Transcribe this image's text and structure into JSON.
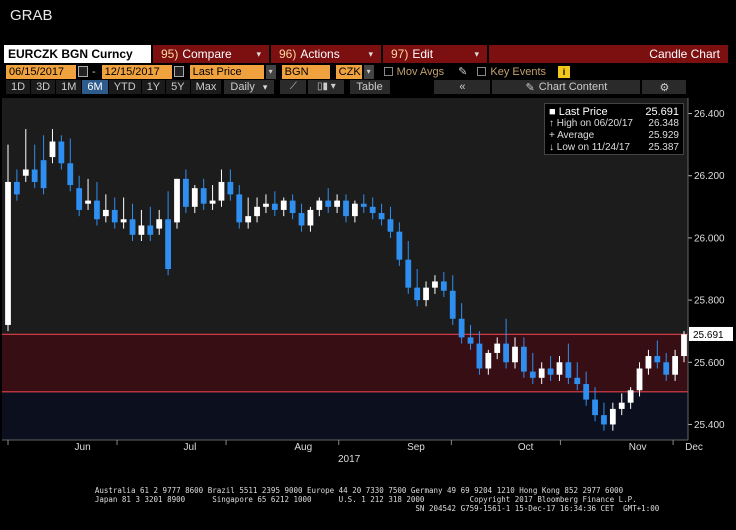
{
  "app": {
    "title": "GRAB"
  },
  "toolbar": {
    "ticker": "EURCZK BGN Curncy",
    "compare": {
      "num": "95)",
      "label": "Compare"
    },
    "actions": {
      "num": "96)",
      "label": "Actions"
    },
    "edit": {
      "num": "97)",
      "label": "Edit"
    },
    "chart_type": "Candle Chart"
  },
  "params": {
    "start_date": "06/15/2017",
    "end_date": "12/15/2017",
    "field": "Last Price",
    "source": "BGN",
    "currency": "CZK",
    "mov_avgs": "Mov Avgs",
    "key_events": "Key Events",
    "info": "i"
  },
  "periods": {
    "buttons": [
      "1D",
      "3D",
      "1M",
      "6M",
      "YTD",
      "1Y",
      "5Y",
      "Max"
    ],
    "active": "6M",
    "frequency": "Daily",
    "table": "Table",
    "collapse": "«",
    "content": "Chart Content",
    "settings_icon": "gear-icon"
  },
  "legend": {
    "rows": [
      {
        "label": "Last Price",
        "value": "25.691"
      },
      {
        "label": "High on 06/20/17",
        "value": "26.348"
      },
      {
        "label": "Average",
        "value": "25.929"
      },
      {
        "label": "Low on 11/24/17",
        "value": "25.387"
      }
    ]
  },
  "colors": {
    "up": "#ffffff",
    "down": "#2f8ff0",
    "band": "#e0404a",
    "panel": "#1c1c1c"
  },
  "chart_data": {
    "type": "candlestick",
    "ylim": [
      25.35,
      26.45
    ],
    "y_ticks": [
      "26.400",
      "26.200",
      "26.000",
      "25.800",
      "25.600",
      "25.400"
    ],
    "month_labels": [
      "Jun",
      "Jul",
      "Aug",
      "Sep",
      "Oct",
      "Nov",
      "Dec"
    ],
    "year_label": "2017",
    "last_price_tag": "25.691",
    "band": {
      "upper": 25.69,
      "lower": 25.505
    },
    "x_start_day": 0,
    "x_end_day": 186,
    "month_day_offsets": [
      0,
      30,
      60,
      91,
      122,
      152,
      183
    ],
    "candles": [
      [
        25.72,
        26.3,
        26.18
      ],
      [
        26.18,
        26.22,
        26.14
      ],
      [
        26.2,
        26.35,
        26.22
      ],
      [
        26.22,
        26.3,
        26.18
      ],
      [
        26.25,
        26.33,
        26.16
      ],
      [
        26.26,
        26.35,
        26.31
      ],
      [
        26.31,
        26.33,
        26.24
      ],
      [
        26.24,
        26.32,
        26.17
      ],
      [
        26.16,
        26.2,
        26.09
      ],
      [
        26.11,
        26.19,
        26.12
      ],
      [
        26.12,
        26.18,
        26.06
      ],
      [
        26.07,
        26.14,
        26.09
      ],
      [
        26.09,
        26.13,
        26.05
      ],
      [
        26.05,
        26.13,
        26.06
      ],
      [
        26.06,
        26.11,
        26.01
      ],
      [
        26.01,
        26.09,
        26.04
      ],
      [
        26.04,
        26.1,
        26.01
      ],
      [
        26.03,
        26.09,
        26.06
      ],
      [
        26.06,
        26.15,
        25.9
      ],
      [
        26.05,
        26.18,
        26.19
      ],
      [
        26.19,
        26.22,
        26.1
      ],
      [
        26.1,
        26.17,
        26.16
      ],
      [
        26.16,
        26.19,
        26.11
      ],
      [
        26.11,
        26.17,
        26.12
      ],
      [
        26.12,
        26.22,
        26.18
      ],
      [
        26.18,
        26.22,
        26.14
      ],
      [
        26.14,
        26.17,
        26.05
      ],
      [
        26.05,
        26.13,
        26.07
      ],
      [
        26.07,
        26.13,
        26.1
      ],
      [
        26.1,
        26.14,
        26.11
      ],
      [
        26.11,
        26.15,
        26.09
      ],
      [
        26.09,
        26.13,
        26.12
      ],
      [
        26.12,
        26.14,
        26.08
      ],
      [
        26.08,
        26.11,
        26.04
      ],
      [
        26.04,
        26.1,
        26.09
      ],
      [
        26.09,
        26.13,
        26.12
      ],
      [
        26.12,
        26.16,
        26.1
      ],
      [
        26.1,
        26.14,
        26.12
      ],
      [
        26.12,
        26.14,
        26.07
      ],
      [
        26.07,
        26.12,
        26.11
      ],
      [
        26.11,
        26.14,
        26.1
      ],
      [
        26.1,
        26.13,
        26.08
      ],
      [
        26.08,
        26.11,
        26.06
      ],
      [
        26.06,
        26.1,
        26.02
      ],
      [
        26.02,
        26.05,
        25.93
      ],
      [
        25.93,
        25.99,
        25.84
      ],
      [
        25.84,
        25.9,
        25.8
      ],
      [
        25.8,
        25.86,
        25.84
      ],
      [
        25.84,
        25.88,
        25.86
      ],
      [
        25.86,
        25.89,
        25.83
      ],
      [
        25.83,
        25.88,
        25.74
      ],
      [
        25.74,
        25.79,
        25.68
      ],
      [
        25.68,
        25.72,
        25.66
      ],
      [
        25.66,
        25.7,
        25.58
      ],
      [
        25.58,
        25.64,
        25.63
      ],
      [
        25.63,
        25.68,
        25.66
      ],
      [
        25.66,
        25.74,
        25.6
      ],
      [
        25.6,
        25.68,
        25.65
      ],
      [
        25.65,
        25.68,
        25.57
      ],
      [
        25.57,
        25.63,
        25.55
      ],
      [
        25.55,
        25.6,
        25.58
      ],
      [
        25.58,
        25.62,
        25.56
      ],
      [
        25.56,
        25.62,
        25.6
      ],
      [
        25.6,
        25.66,
        25.55
      ],
      [
        25.55,
        25.6,
        25.53
      ],
      [
        25.53,
        25.57,
        25.48
      ],
      [
        25.48,
        25.52,
        25.43
      ],
      [
        25.43,
        25.47,
        25.4
      ],
      [
        25.4,
        25.47,
        25.45
      ],
      [
        25.45,
        25.5,
        25.47
      ],
      [
        25.47,
        25.52,
        25.51
      ],
      [
        25.51,
        25.6,
        25.58
      ],
      [
        25.58,
        25.64,
        25.62
      ],
      [
        25.62,
        25.67,
        25.6
      ],
      [
        25.6,
        25.63,
        25.56
      ],
      [
        25.56,
        25.64,
        25.62
      ],
      [
        25.62,
        25.7,
        25.69
      ]
    ]
  }
}
